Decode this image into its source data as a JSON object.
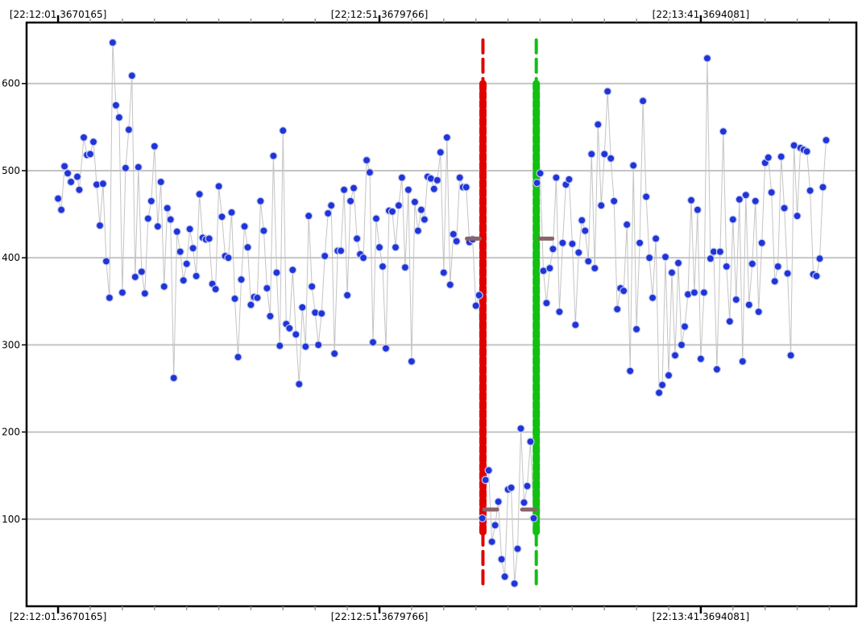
{
  "chart_data": {
    "type": "scatter",
    "title": "",
    "xlabel": "",
    "ylabel": "",
    "x_unit": "seconds after 22:12:01",
    "xlim": [
      -4.9,
      124.2
    ],
    "ylim": [
      0,
      670
    ],
    "y_ticks": [
      100,
      200,
      300,
      400,
      500,
      600
    ],
    "x_ticks": [
      {
        "x": 0,
        "label": "[22:12:01.3670165]"
      },
      {
        "x": 50,
        "label": "[22:12:51.3679766]"
      },
      {
        "x": 100,
        "label": "[22:13:41.3694081]"
      }
    ],
    "grid": true,
    "colors": {
      "points": "#1f35d8",
      "line": "#c4c4c4",
      "red_marker": "#e00000",
      "green_marker": "#11c011",
      "mean_marker": "#8a6468",
      "grid": "#c4c4c4"
    },
    "series": [
      {
        "values": [
          [
            0,
            468
          ],
          [
            0.5,
            455
          ],
          [
            1,
            505
          ],
          [
            1.5,
            497
          ],
          [
            2,
            487
          ],
          [
            3,
            493
          ],
          [
            3.3,
            478
          ],
          [
            4,
            538
          ],
          [
            4.5,
            518
          ],
          [
            5,
            519
          ],
          [
            5.5,
            533
          ],
          [
            6,
            484
          ],
          [
            6.5,
            437
          ],
          [
            7,
            485
          ],
          [
            7.5,
            396
          ],
          [
            8,
            354
          ],
          [
            8.5,
            647
          ],
          [
            9,
            575
          ],
          [
            9.5,
            561
          ],
          [
            10,
            360
          ],
          [
            10.5,
            503
          ],
          [
            11,
            547
          ],
          [
            11.5,
            609
          ],
          [
            12,
            378
          ],
          [
            12.5,
            504
          ],
          [
            13,
            384
          ],
          [
            13.5,
            359
          ],
          [
            14,
            445
          ],
          [
            14.5,
            465
          ],
          [
            15,
            528
          ],
          [
            15.5,
            436
          ],
          [
            16,
            487
          ],
          [
            16.5,
            367
          ],
          [
            17,
            457
          ],
          [
            17.5,
            444
          ],
          [
            18,
            262
          ],
          [
            18.5,
            430
          ],
          [
            19,
            407
          ],
          [
            19.5,
            374
          ],
          [
            20,
            393
          ],
          [
            20.5,
            433
          ],
          [
            21,
            411
          ],
          [
            21.5,
            379
          ],
          [
            22,
            473
          ],
          [
            22.5,
            423
          ],
          [
            23,
            421
          ],
          [
            23.5,
            422
          ],
          [
            24,
            370
          ],
          [
            24.5,
            364
          ],
          [
            25,
            482
          ],
          [
            25.5,
            447
          ],
          [
            26,
            402
          ],
          [
            26.5,
            400
          ],
          [
            27,
            452
          ],
          [
            27.5,
            353
          ],
          [
            28,
            286
          ],
          [
            28.5,
            375
          ],
          [
            29,
            436
          ],
          [
            29.5,
            412
          ],
          [
            30,
            346
          ],
          [
            30.5,
            355
          ],
          [
            31,
            354
          ],
          [
            31.5,
            465
          ],
          [
            32,
            431
          ],
          [
            32.5,
            365
          ],
          [
            33,
            333
          ],
          [
            33.5,
            517
          ],
          [
            34,
            383
          ],
          [
            34.5,
            299
          ],
          [
            35,
            546
          ],
          [
            35.5,
            324
          ],
          [
            36,
            319
          ],
          [
            36.5,
            386
          ],
          [
            37,
            312
          ],
          [
            37.5,
            255
          ],
          [
            38,
            343
          ],
          [
            38.5,
            298
          ],
          [
            39,
            448
          ],
          [
            39.5,
            367
          ],
          [
            40,
            337
          ],
          [
            40.5,
            300
          ],
          [
            41,
            336
          ],
          [
            41.5,
            402
          ],
          [
            42,
            451
          ],
          [
            42.5,
            460
          ],
          [
            43,
            290
          ],
          [
            43.5,
            408
          ],
          [
            44,
            408
          ],
          [
            44.5,
            478
          ],
          [
            45,
            357
          ],
          [
            45.5,
            465
          ],
          [
            46,
            480
          ],
          [
            46.5,
            422
          ],
          [
            47,
            404
          ],
          [
            47.5,
            400
          ],
          [
            48,
            512
          ],
          [
            48.5,
            498
          ],
          [
            49,
            303
          ],
          [
            49.5,
            445
          ],
          [
            50,
            412
          ],
          [
            50.5,
            390
          ],
          [
            51,
            296
          ],
          [
            51.5,
            454
          ],
          [
            52,
            453
          ],
          [
            52.5,
            412
          ],
          [
            53,
            460
          ],
          [
            53.5,
            492
          ],
          [
            54,
            389
          ],
          [
            54.5,
            478
          ],
          [
            55,
            281
          ],
          [
            55.5,
            464
          ],
          [
            56,
            431
          ],
          [
            56.5,
            455
          ],
          [
            57,
            444
          ],
          [
            57.5,
            493
          ],
          [
            58,
            491
          ],
          [
            58.5,
            479
          ],
          [
            59,
            489
          ],
          [
            59.5,
            521
          ],
          [
            60,
            383
          ],
          [
            60.5,
            538
          ],
          [
            61,
            369
          ],
          [
            61.5,
            427
          ],
          [
            62,
            419
          ],
          [
            62.5,
            492
          ],
          [
            63,
            481
          ],
          [
            63.5,
            481
          ],
          [
            64,
            418
          ],
          [
            64.5,
            421
          ],
          [
            65,
            345
          ],
          [
            65.5,
            357
          ],
          [
            66,
            101
          ],
          [
            66.5,
            145
          ],
          [
            67,
            156
          ],
          [
            67.5,
            74
          ],
          [
            68,
            93
          ],
          [
            68.5,
            120
          ],
          [
            69,
            54
          ],
          [
            69.5,
            34
          ],
          [
            70,
            134
          ],
          [
            70.5,
            136
          ],
          [
            71,
            26
          ],
          [
            71.5,
            66
          ],
          [
            72,
            204
          ],
          [
            72.5,
            119
          ],
          [
            73,
            138
          ],
          [
            73.5,
            189
          ],
          [
            74,
            101
          ],
          [
            74.5,
            486
          ],
          [
            75,
            497
          ],
          [
            75.5,
            385
          ],
          [
            76,
            348
          ],
          [
            76.5,
            388
          ],
          [
            77,
            410
          ],
          [
            77.5,
            492
          ],
          [
            78,
            338
          ],
          [
            78.5,
            417
          ],
          [
            79,
            484
          ],
          [
            79.5,
            490
          ],
          [
            80,
            416
          ],
          [
            80.5,
            323
          ],
          [
            81,
            406
          ],
          [
            81.5,
            443
          ],
          [
            82,
            431
          ],
          [
            82.5,
            396
          ],
          [
            83,
            519
          ],
          [
            83.5,
            388
          ],
          [
            84,
            553
          ],
          [
            84.5,
            460
          ],
          [
            85,
            519
          ],
          [
            85.5,
            591
          ],
          [
            86,
            514
          ],
          [
            86.5,
            465
          ],
          [
            87,
            341
          ],
          [
            87.5,
            365
          ],
          [
            88,
            362
          ],
          [
            88.5,
            438
          ],
          [
            89,
            270
          ],
          [
            89.5,
            506
          ],
          [
            90,
            318
          ],
          [
            90.5,
            417
          ],
          [
            91,
            580
          ],
          [
            91.5,
            470
          ],
          [
            92,
            400
          ],
          [
            92.5,
            354
          ],
          [
            93,
            422
          ],
          [
            93.5,
            245
          ],
          [
            94,
            254
          ],
          [
            94.5,
            401
          ],
          [
            95,
            265
          ],
          [
            95.5,
            383
          ],
          [
            96,
            288
          ],
          [
            96.5,
            394
          ],
          [
            97,
            300
          ],
          [
            97.5,
            321
          ],
          [
            98,
            358
          ],
          [
            98.5,
            466
          ],
          [
            99,
            360
          ],
          [
            99.5,
            455
          ],
          [
            100,
            284
          ],
          [
            100.5,
            360
          ],
          [
            101,
            629
          ],
          [
            101.5,
            399
          ],
          [
            102,
            407
          ],
          [
            102.5,
            272
          ],
          [
            103,
            407
          ],
          [
            103.5,
            545
          ],
          [
            104,
            390
          ],
          [
            104.5,
            327
          ],
          [
            105,
            444
          ],
          [
            105.5,
            352
          ],
          [
            106,
            467
          ],
          [
            106.5,
            281
          ],
          [
            107,
            472
          ],
          [
            107.5,
            346
          ],
          [
            108,
            393
          ],
          [
            108.5,
            465
          ],
          [
            109,
            338
          ],
          [
            109.5,
            417
          ],
          [
            110,
            509
          ],
          [
            110.5,
            515
          ],
          [
            111,
            475
          ],
          [
            111.5,
            373
          ],
          [
            112,
            390
          ],
          [
            112.5,
            516
          ],
          [
            113,
            457
          ],
          [
            113.5,
            382
          ],
          [
            114,
            288
          ],
          [
            114.5,
            529
          ],
          [
            115,
            448
          ],
          [
            115.5,
            526
          ],
          [
            116,
            524
          ],
          [
            116.5,
            522
          ],
          [
            117,
            477
          ],
          [
            117.5,
            381
          ],
          [
            118,
            379
          ],
          [
            118.5,
            399
          ],
          [
            119,
            481
          ],
          [
            119.5,
            535
          ]
        ]
      }
    ],
    "vertical_markers": [
      {
        "x": 66.1,
        "y_range": [
          24,
          650
        ],
        "color": "red"
      },
      {
        "x": 74.4,
        "y_range": [
          24,
          650
        ],
        "color": "green"
      }
    ],
    "mean_markers": [
      {
        "x": [
          63.6,
          65.6
        ],
        "y": 422
      },
      {
        "x": [
          66.3,
          68.3
        ],
        "y": 111
      },
      {
        "x": [
          72.2,
          74.2
        ],
        "y": 111
      },
      {
        "x": [
          74.9,
          76.9
        ],
        "y": 422
      }
    ]
  }
}
